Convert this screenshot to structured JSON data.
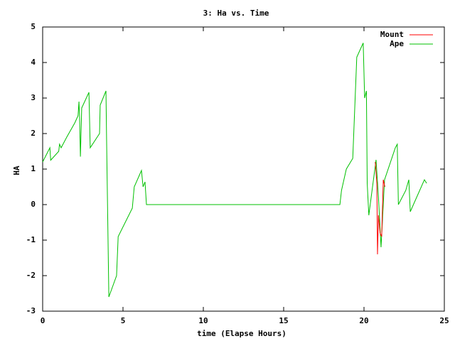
{
  "chart_data": {
    "type": "line",
    "title": "3: Ha vs. Time",
    "xlabel": "time (Elapse Hours)",
    "ylabel": "HA",
    "xlim": [
      0,
      25
    ],
    "ylim": [
      -3,
      5
    ],
    "xticks": [
      0,
      5,
      10,
      15,
      20,
      25
    ],
    "yticks": [
      -3,
      -2,
      -1,
      0,
      1,
      2,
      3,
      4,
      5
    ],
    "legend": "top-right",
    "series": [
      {
        "name": "Mount",
        "color": "#ff0000",
        "x": [
          20.7,
          20.8,
          20.84,
          20.9,
          21.0,
          21.1,
          21.2,
          21.3
        ],
        "values": [
          1.2,
          0.6,
          -1.4,
          -0.3,
          -0.8,
          -0.9,
          0.7,
          0.5
        ]
      },
      {
        "name": "Ape",
        "color": "#00c000",
        "x": [
          0,
          0.45,
          0.5,
          1.0,
          1.05,
          1.15,
          1.5,
          2.0,
          2.2,
          2.26,
          2.3,
          2.35,
          2.43,
          2.88,
          2.96,
          3.54,
          3.58,
          3.94,
          3.98,
          4.12,
          4.6,
          4.7,
          5.58,
          5.7,
          6.15,
          6.25,
          6.37,
          6.46,
          18.5,
          18.6,
          18.9,
          19.3,
          19.55,
          19.95,
          20.04,
          20.15,
          20.2,
          20.3,
          20.75,
          20.9,
          21.06,
          21.28,
          21.95,
          22.07,
          22.14,
          22.6,
          22.79,
          22.88,
          23.76,
          23.9
        ],
        "values": [
          1.2,
          1.6,
          1.25,
          1.5,
          1.7,
          1.6,
          1.9,
          2.3,
          2.5,
          2.9,
          2.4,
          1.35,
          2.72,
          3.16,
          1.6,
          2.0,
          2.8,
          3.2,
          1.8,
          -2.6,
          -2.0,
          -0.9,
          -0.1,
          0.5,
          0.96,
          0.5,
          0.64,
          0,
          0,
          0.4,
          1.0,
          1.3,
          4.15,
          4.55,
          3.0,
          3.2,
          0.6,
          -0.3,
          1.26,
          0.2,
          -1.2,
          0.7,
          1.6,
          1.7,
          0,
          0.4,
          0.7,
          -0.2,
          0.7,
          0.6
        ]
      }
    ]
  }
}
